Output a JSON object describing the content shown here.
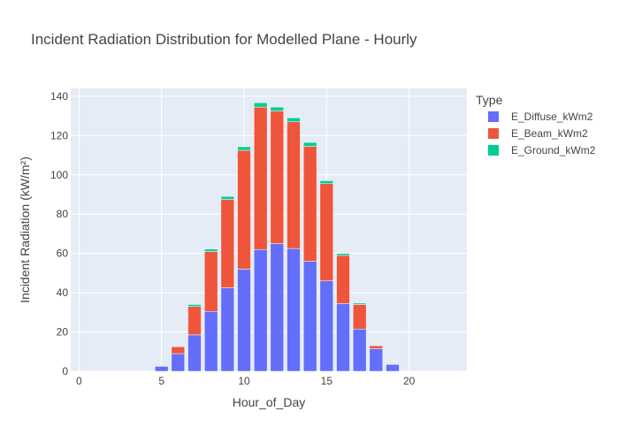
{
  "chart_data": {
    "type": "bar",
    "barmode": "stack",
    "title": "Incident Radiation Distribution for Modelled Plane - Hourly",
    "xlabel": "Hour_of_Day",
    "ylabel": "Incident Radiation (kW/m²)",
    "xlim": [
      -0.5,
      23.5
    ],
    "ylim": [
      0,
      144
    ],
    "x_ticks": [
      0,
      5,
      10,
      15,
      20
    ],
    "y_ticks": [
      0,
      20,
      40,
      60,
      80,
      100,
      120,
      140
    ],
    "grid": true,
    "legend_title": "Type",
    "legend_position": "right",
    "x": [
      0,
      1,
      2,
      3,
      4,
      5,
      6,
      7,
      8,
      9,
      10,
      11,
      12,
      13,
      14,
      15,
      16,
      17,
      18,
      19,
      20,
      21,
      22,
      23
    ],
    "series": [
      {
        "name": "E_Diffuse_kWm2",
        "color": "#636efa",
        "values": [
          0,
          0,
          0,
          0,
          0,
          2.5,
          9,
          18.5,
          30.5,
          42.5,
          52,
          62,
          65,
          62.5,
          56,
          46,
          34.5,
          21.5,
          11.5,
          3.5,
          0,
          0,
          0,
          0
        ]
      },
      {
        "name": "E_Beam_kWm2",
        "color": "#ef553b",
        "values": [
          0,
          0,
          0,
          0,
          0,
          0,
          3.5,
          14.5,
          30.5,
          45,
          60.5,
          72.5,
          67.5,
          64.5,
          58.5,
          49.5,
          24.5,
          12.5,
          1.5,
          0,
          0,
          0,
          0,
          0
        ]
      },
      {
        "name": "E_Ground_kWm2",
        "color": "#00cc96",
        "values": [
          0,
          0,
          0,
          0,
          0,
          0,
          0.3,
          1,
          1.2,
          1.5,
          1.8,
          2.2,
          2,
          2,
          2,
          1.5,
          1,
          0.7,
          0.3,
          0,
          0,
          0,
          0,
          0
        ]
      }
    ]
  }
}
